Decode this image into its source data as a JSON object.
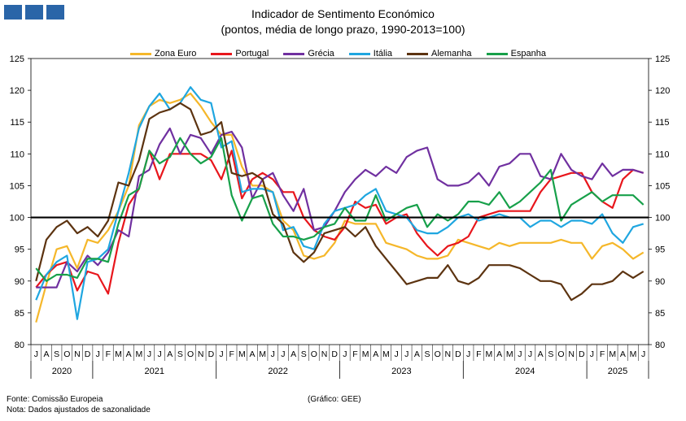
{
  "header": {
    "title": "Indicador de Sentimento Económico",
    "subtitle": "(pontos, média de longo prazo, 1990-2013=100)"
  },
  "footer": {
    "source": "Fonte: Comissão Europeia",
    "note": "Nota: Dados ajustados de sazonalidade",
    "credit": "(Gráfico: GEE)"
  },
  "colors": {
    "Zona Euro": "#f5b72a",
    "Portugal": "#e8161c",
    "Grécia": "#7030a0",
    "Itália": "#1fa6e0",
    "Alemanha": "#5c3310",
    "Espanha": "#17a04a"
  },
  "chart_data": {
    "type": "line",
    "ylim": [
      80,
      125
    ],
    "yticks": [
      80,
      85,
      90,
      95,
      100,
      105,
      110,
      115,
      120,
      125
    ],
    "reference_line": 100,
    "grid": false,
    "legend": "top",
    "months": [
      "J",
      "A",
      "S",
      "O",
      "N",
      "D",
      "J",
      "F",
      "M",
      "A",
      "M",
      "J",
      "J",
      "A",
      "S",
      "O",
      "N",
      "D",
      "J",
      "F",
      "M",
      "A",
      "M",
      "J",
      "J",
      "A",
      "S",
      "O",
      "N",
      "D",
      "J",
      "F",
      "M",
      "A",
      "M",
      "J",
      "J",
      "A",
      "S",
      "O",
      "N",
      "D",
      "J",
      "F",
      "M",
      "A",
      "M",
      "J",
      "J",
      "A",
      "S",
      "O",
      "N",
      "D",
      "J",
      "F",
      "M",
      "A",
      "M",
      "J"
    ],
    "years": [
      {
        "label": "2020",
        "start": 0,
        "count": 6
      },
      {
        "label": "2021",
        "start": 6,
        "count": 12
      },
      {
        "label": "2022",
        "start": 18,
        "count": 12
      },
      {
        "label": "2023",
        "start": 30,
        "count": 12
      },
      {
        "label": "2024",
        "start": 42,
        "count": 12
      },
      {
        "label": "2025",
        "start": 54,
        "count": 6
      }
    ],
    "series": [
      {
        "name": "Zona Euro",
        "values": [
          83.5,
          89.5,
          95.0,
          95.5,
          92.0,
          96.5,
          96.0,
          98.0,
          101.0,
          105.0,
          114.5,
          117.5,
          118.5,
          118.0,
          118.5,
          119.5,
          117.5,
          115.0,
          113.0,
          113.0,
          108.0,
          105.0,
          105.0,
          104.0,
          99.5,
          98.0,
          94.0,
          93.5,
          94.0,
          96.0,
          99.5,
          99.0,
          99.0,
          99.0,
          96.0,
          95.5,
          95.0,
          94.0,
          93.5,
          93.5,
          94.0,
          96.5,
          96.0,
          95.5,
          95.0,
          96.0,
          95.5,
          96.0,
          96.0,
          96.0,
          96.0,
          96.5,
          96.0,
          96.0,
          93.5,
          95.5,
          96.0,
          95.0,
          93.5,
          94.5
        ]
      },
      {
        "name": "Portugal",
        "values": [
          89.0,
          91.0,
          92.5,
          93.0,
          88.5,
          91.5,
          91.0,
          88.0,
          96.0,
          102.0,
          104.5,
          110.5,
          106.0,
          110.0,
          110.0,
          110.0,
          110.0,
          109.0,
          106.0,
          110.5,
          103.0,
          106.0,
          107.0,
          106.0,
          104.0,
          104.0,
          100.0,
          98.0,
          97.0,
          96.5,
          98.5,
          102.5,
          101.5,
          102.0,
          99.0,
          100.0,
          100.5,
          97.5,
          95.5,
          94.0,
          95.5,
          96.0,
          97.0,
          100.0,
          100.5,
          101.0,
          101.0,
          101.0,
          101.0,
          104.0,
          106.0,
          106.5,
          107.0,
          107.0,
          104.0,
          102.5,
          101.5,
          106.0,
          107.5,
          107.0
        ]
      },
      {
        "name": "Grécia",
        "values": [
          89.0,
          89.0,
          89.0,
          93.0,
          91.5,
          94.0,
          92.5,
          94.5,
          98.0,
          97.0,
          106.5,
          107.5,
          111.5,
          114.0,
          110.0,
          113.0,
          112.5,
          110.0,
          113.0,
          113.5,
          111.0,
          103.0,
          106.0,
          107.0,
          103.5,
          101.0,
          104.5,
          98.0,
          98.5,
          101.0,
          104.0,
          106.0,
          107.5,
          106.5,
          108.0,
          107.0,
          109.5,
          110.5,
          111.0,
          106.0,
          105.0,
          105.0,
          105.5,
          107.0,
          105.0,
          108.0,
          108.5,
          110.0,
          110.0,
          106.5,
          106.0,
          110.0,
          107.5,
          106.5,
          106.0,
          108.5,
          106.5,
          107.5,
          107.5,
          107.0
        ]
      },
      {
        "name": "Itália",
        "values": [
          87.0,
          91.0,
          93.0,
          94.0,
          84.0,
          93.0,
          93.5,
          95.0,
          101.0,
          107.0,
          114.0,
          117.5,
          119.5,
          117.0,
          118.0,
          120.5,
          118.5,
          118.0,
          111.0,
          112.0,
          104.0,
          104.5,
          104.5,
          104.0,
          98.0,
          98.5,
          95.5,
          95.0,
          99.0,
          101.0,
          101.5,
          102.0,
          103.5,
          104.5,
          101.0,
          100.5,
          100.0,
          98.0,
          97.5,
          97.5,
          98.5,
          100.0,
          100.5,
          99.5,
          100.0,
          100.5,
          100.0,
          100.0,
          98.5,
          99.5,
          99.5,
          98.5,
          99.5,
          99.5,
          99.0,
          100.5,
          97.5,
          96.0,
          98.5,
          99.0
        ]
      },
      {
        "name": "Alemanha",
        "values": [
          90.0,
          96.5,
          98.5,
          99.5,
          97.5,
          98.5,
          97.0,
          99.5,
          105.5,
          105.0,
          109.0,
          115.5,
          116.5,
          117.0,
          118.0,
          117.0,
          113.0,
          113.5,
          115.0,
          107.0,
          106.5,
          107.0,
          106.0,
          100.5,
          99.0,
          94.5,
          93.0,
          94.5,
          97.5,
          98.0,
          98.5,
          97.0,
          98.5,
          95.5,
          93.5,
          91.5,
          89.5,
          90.0,
          90.5,
          90.5,
          92.5,
          90.0,
          89.5,
          90.5,
          92.5,
          92.5,
          92.5,
          92.0,
          91.0,
          90.0,
          90.0,
          89.5,
          87.0,
          88.0,
          89.5,
          89.5,
          90.0,
          91.5,
          90.5,
          91.5
        ]
      },
      {
        "name": "Espanha",
        "values": [
          92.0,
          90.0,
          91.0,
          91.0,
          90.5,
          93.5,
          93.5,
          93.0,
          99.0,
          103.5,
          104.5,
          110.5,
          108.5,
          109.5,
          112.5,
          110.0,
          108.5,
          109.5,
          112.5,
          103.5,
          99.5,
          103.0,
          103.5,
          99.0,
          97.0,
          97.0,
          96.5,
          97.0,
          98.5,
          99.0,
          101.5,
          99.5,
          99.5,
          103.5,
          99.5,
          100.5,
          101.5,
          102.0,
          98.5,
          100.5,
          99.5,
          100.5,
          102.5,
          102.5,
          102.0,
          104.0,
          101.5,
          102.5,
          104.0,
          105.5,
          107.5,
          99.5,
          102.0,
          103.0,
          104.0,
          102.5,
          103.5,
          103.5,
          103.5,
          102.0
        ]
      }
    ]
  }
}
